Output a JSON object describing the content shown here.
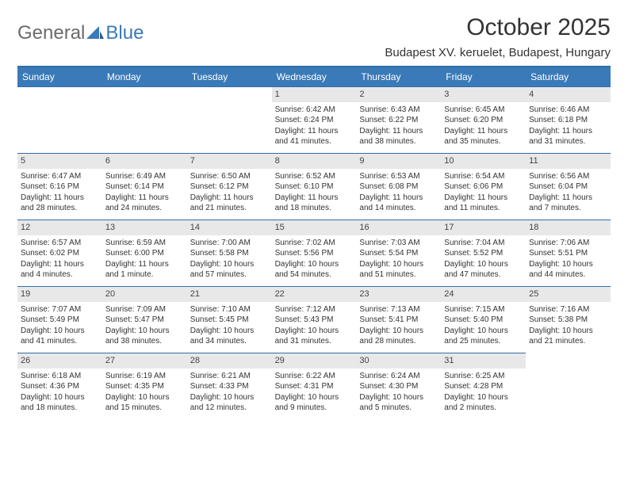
{
  "logo": {
    "general": "General",
    "blue": "Blue"
  },
  "title": "October 2025",
  "location": "Budapest XV. keruelet, Budapest, Hungary",
  "colors": {
    "header_bg": "#3a7ab8",
    "header_border": "#2f6ea8",
    "daynum_bg": "#e8e8e8",
    "text": "#333333",
    "logo_gray": "#6b6b6b",
    "logo_blue": "#3a7ab8",
    "page_bg": "#ffffff"
  },
  "day_headers": [
    "Sunday",
    "Monday",
    "Tuesday",
    "Wednesday",
    "Thursday",
    "Friday",
    "Saturday"
  ],
  "leading_blanks": 3,
  "days": [
    {
      "n": 1,
      "sunrise": "6:42 AM",
      "sunset": "6:24 PM",
      "daylight": "11 hours and 41 minutes."
    },
    {
      "n": 2,
      "sunrise": "6:43 AM",
      "sunset": "6:22 PM",
      "daylight": "11 hours and 38 minutes."
    },
    {
      "n": 3,
      "sunrise": "6:45 AM",
      "sunset": "6:20 PM",
      "daylight": "11 hours and 35 minutes."
    },
    {
      "n": 4,
      "sunrise": "6:46 AM",
      "sunset": "6:18 PM",
      "daylight": "11 hours and 31 minutes."
    },
    {
      "n": 5,
      "sunrise": "6:47 AM",
      "sunset": "6:16 PM",
      "daylight": "11 hours and 28 minutes."
    },
    {
      "n": 6,
      "sunrise": "6:49 AM",
      "sunset": "6:14 PM",
      "daylight": "11 hours and 24 minutes."
    },
    {
      "n": 7,
      "sunrise": "6:50 AM",
      "sunset": "6:12 PM",
      "daylight": "11 hours and 21 minutes."
    },
    {
      "n": 8,
      "sunrise": "6:52 AM",
      "sunset": "6:10 PM",
      "daylight": "11 hours and 18 minutes."
    },
    {
      "n": 9,
      "sunrise": "6:53 AM",
      "sunset": "6:08 PM",
      "daylight": "11 hours and 14 minutes."
    },
    {
      "n": 10,
      "sunrise": "6:54 AM",
      "sunset": "6:06 PM",
      "daylight": "11 hours and 11 minutes."
    },
    {
      "n": 11,
      "sunrise": "6:56 AM",
      "sunset": "6:04 PM",
      "daylight": "11 hours and 7 minutes."
    },
    {
      "n": 12,
      "sunrise": "6:57 AM",
      "sunset": "6:02 PM",
      "daylight": "11 hours and 4 minutes."
    },
    {
      "n": 13,
      "sunrise": "6:59 AM",
      "sunset": "6:00 PM",
      "daylight": "11 hours and 1 minute."
    },
    {
      "n": 14,
      "sunrise": "7:00 AM",
      "sunset": "5:58 PM",
      "daylight": "10 hours and 57 minutes."
    },
    {
      "n": 15,
      "sunrise": "7:02 AM",
      "sunset": "5:56 PM",
      "daylight": "10 hours and 54 minutes."
    },
    {
      "n": 16,
      "sunrise": "7:03 AM",
      "sunset": "5:54 PM",
      "daylight": "10 hours and 51 minutes."
    },
    {
      "n": 17,
      "sunrise": "7:04 AM",
      "sunset": "5:52 PM",
      "daylight": "10 hours and 47 minutes."
    },
    {
      "n": 18,
      "sunrise": "7:06 AM",
      "sunset": "5:51 PM",
      "daylight": "10 hours and 44 minutes."
    },
    {
      "n": 19,
      "sunrise": "7:07 AM",
      "sunset": "5:49 PM",
      "daylight": "10 hours and 41 minutes."
    },
    {
      "n": 20,
      "sunrise": "7:09 AM",
      "sunset": "5:47 PM",
      "daylight": "10 hours and 38 minutes."
    },
    {
      "n": 21,
      "sunrise": "7:10 AM",
      "sunset": "5:45 PM",
      "daylight": "10 hours and 34 minutes."
    },
    {
      "n": 22,
      "sunrise": "7:12 AM",
      "sunset": "5:43 PM",
      "daylight": "10 hours and 31 minutes."
    },
    {
      "n": 23,
      "sunrise": "7:13 AM",
      "sunset": "5:41 PM",
      "daylight": "10 hours and 28 minutes."
    },
    {
      "n": 24,
      "sunrise": "7:15 AM",
      "sunset": "5:40 PM",
      "daylight": "10 hours and 25 minutes."
    },
    {
      "n": 25,
      "sunrise": "7:16 AM",
      "sunset": "5:38 PM",
      "daylight": "10 hours and 21 minutes."
    },
    {
      "n": 26,
      "sunrise": "6:18 AM",
      "sunset": "4:36 PM",
      "daylight": "10 hours and 18 minutes."
    },
    {
      "n": 27,
      "sunrise": "6:19 AM",
      "sunset": "4:35 PM",
      "daylight": "10 hours and 15 minutes."
    },
    {
      "n": 28,
      "sunrise": "6:21 AM",
      "sunset": "4:33 PM",
      "daylight": "10 hours and 12 minutes."
    },
    {
      "n": 29,
      "sunrise": "6:22 AM",
      "sunset": "4:31 PM",
      "daylight": "10 hours and 9 minutes."
    },
    {
      "n": 30,
      "sunrise": "6:24 AM",
      "sunset": "4:30 PM",
      "daylight": "10 hours and 5 minutes."
    },
    {
      "n": 31,
      "sunrise": "6:25 AM",
      "sunset": "4:28 PM",
      "daylight": "10 hours and 2 minutes."
    }
  ],
  "labels": {
    "sunrise": "Sunrise:",
    "sunset": "Sunset:",
    "daylight": "Daylight:"
  }
}
